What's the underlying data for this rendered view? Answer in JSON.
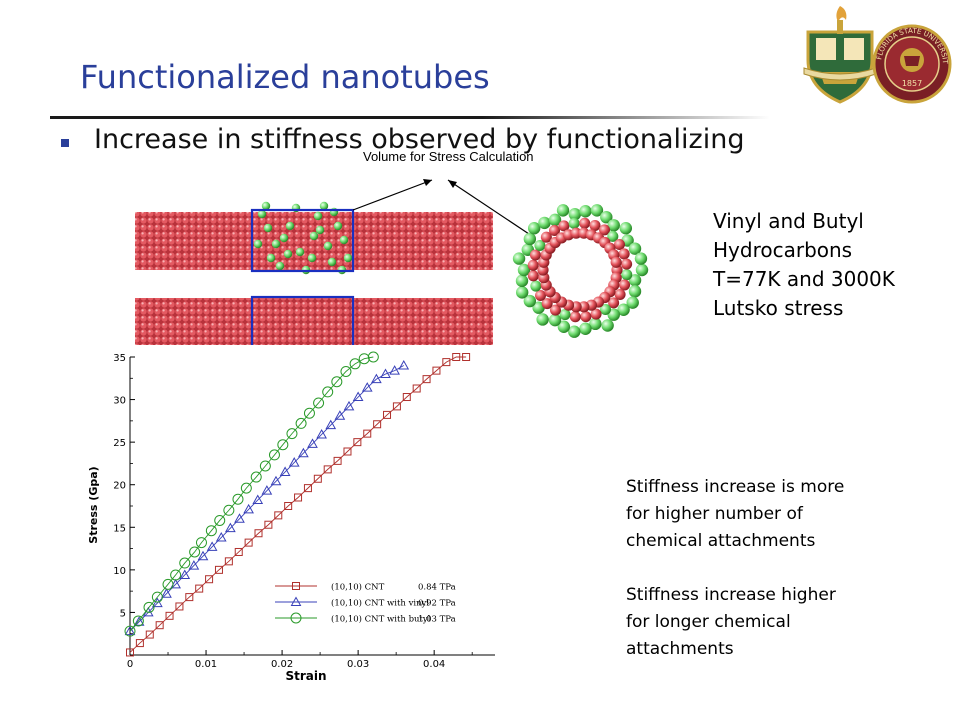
{
  "slide": {
    "title": "Functionalized  nanotubes",
    "bullet": "Increase in stiffness observed by functionalizing",
    "volume_caption": "Volume for Stress Calculation",
    "conditions": [
      "Vinyl and Butyl",
      "Hydrocarbons",
      "T=77K and 3000K",
      "Lutsko stress"
    ],
    "note1": [
      "Stiffness increase is more",
      "for  higher number of",
      "chemical attachments"
    ],
    "note2": [
      "Stiffness increase higher",
      "for longer chemical",
      "attachments"
    ],
    "logos": [
      "university-crest-logo",
      "florida-state-university-seal"
    ],
    "seal_text": "FLORIDA STATE UNIVERSITY",
    "seal_year": "1857"
  },
  "colors": {
    "title": "#2a3f9a",
    "atom_red": "#d9454e",
    "atom_green": "#6fdc6f",
    "box_blue": "#1a2fc0",
    "series_cnt": "#b0302c",
    "series_vinyl": "#3840b8",
    "series_butyl": "#2a9a2a"
  },
  "chart_data": {
    "type": "line",
    "xlabel": "Strain",
    "ylabel": "Stress (Gpa)",
    "xlim": [
      0,
      0.048
    ],
    "ylim": [
      0,
      35
    ],
    "x_ticks": [
      "0",
      "0.01",
      "0.02",
      "0.03",
      "0.04"
    ],
    "y_ticks": [
      "5",
      "10",
      "15",
      "20",
      "25",
      "30",
      "35"
    ],
    "legend_position": "lower-right",
    "series": [
      {
        "name": "(10,10) CNT",
        "modulus_label": "0.84  TPa",
        "marker": "square",
        "x": [
          0,
          0.0013,
          0.0026,
          0.0039,
          0.0052,
          0.0065,
          0.0078,
          0.0091,
          0.0104,
          0.0117,
          0.013,
          0.0143,
          0.0156,
          0.0169,
          0.0182,
          0.0195,
          0.0208,
          0.0221,
          0.0234,
          0.0247,
          0.026,
          0.0273,
          0.0286,
          0.0299,
          0.0312,
          0.0325,
          0.0338,
          0.0351,
          0.0364,
          0.0377,
          0.039,
          0.0403,
          0.0416,
          0.0429,
          0.0442
        ],
        "y": [
          0.3,
          1.4,
          2.4,
          3.5,
          4.6,
          5.7,
          6.8,
          7.8,
          8.9,
          10.0,
          11.0,
          12.1,
          13.2,
          14.3,
          15.3,
          16.4,
          17.5,
          18.5,
          19.6,
          20.7,
          21.8,
          22.8,
          23.9,
          25.0,
          26.0,
          27.1,
          28.2,
          29.2,
          30.3,
          31.3,
          32.4,
          33.4,
          34.4,
          35.0,
          35.0
        ]
      },
      {
        "name": "(10,10) CNT with vinyl",
        "modulus_label": "0.92  TPa",
        "marker": "triangle",
        "x": [
          0,
          0.0012,
          0.0024,
          0.0036,
          0.0048,
          0.006,
          0.0072,
          0.0084,
          0.0096,
          0.0108,
          0.012,
          0.0132,
          0.0144,
          0.0156,
          0.0168,
          0.018,
          0.0192,
          0.0204,
          0.0216,
          0.0228,
          0.024,
          0.0252,
          0.0264,
          0.0276,
          0.0288,
          0.03,
          0.0312,
          0.0324,
          0.0336,
          0.0348,
          0.036
        ],
        "y": [
          2.8,
          3.9,
          5.0,
          6.1,
          7.2,
          8.3,
          9.4,
          10.5,
          11.6,
          12.7,
          13.8,
          14.9,
          16.0,
          17.1,
          18.2,
          19.3,
          20.4,
          21.5,
          22.6,
          23.7,
          24.8,
          25.9,
          27.0,
          28.1,
          29.2,
          30.3,
          31.4,
          32.4,
          33.0,
          33.4,
          34.0
        ]
      },
      {
        "name": "(10,10) CNT with butyl",
        "modulus_label": "1.03  TPa",
        "marker": "circle",
        "x": [
          0,
          0.0011,
          0.0025,
          0.0036,
          0.005,
          0.006,
          0.0072,
          0.0085,
          0.0094,
          0.0107,
          0.0118,
          0.013,
          0.0142,
          0.0153,
          0.0166,
          0.0178,
          0.019,
          0.0201,
          0.0213,
          0.0225,
          0.0236,
          0.0248,
          0.026,
          0.0272,
          0.0284,
          0.0296,
          0.0308,
          0.032
        ],
        "y": [
          2.8,
          4.0,
          5.6,
          6.8,
          8.3,
          9.4,
          10.8,
          12.1,
          13.2,
          14.6,
          15.8,
          17.0,
          18.3,
          19.6,
          20.9,
          22.2,
          23.5,
          24.7,
          26.0,
          27.2,
          28.4,
          29.6,
          30.9,
          32.1,
          33.3,
          34.2,
          34.8,
          35.0
        ]
      }
    ]
  }
}
